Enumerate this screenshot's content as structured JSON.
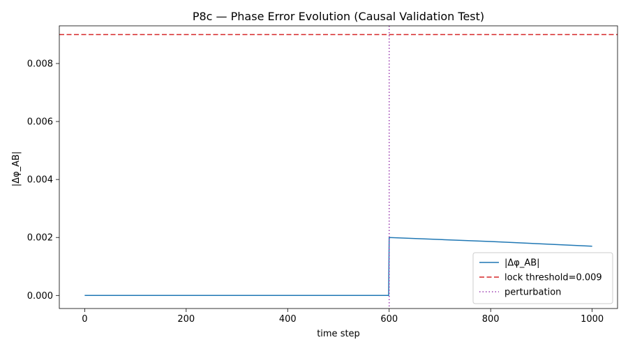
{
  "chart_data": {
    "type": "line",
    "title": "P8c — Phase Error Evolution (Causal Validation Test)",
    "xlabel": "time step",
    "ylabel": "|Δφ_AB|",
    "xlim": [
      -50,
      1050
    ],
    "ylim": [
      -0.00045,
      0.0093
    ],
    "xticks": [
      0,
      200,
      400,
      600,
      800,
      1000
    ],
    "xtick_labels": [
      "0",
      "200",
      "400",
      "600",
      "800",
      "1000"
    ],
    "yticks": [
      0.0,
      0.002,
      0.004,
      0.006,
      0.008
    ],
    "ytick_labels": [
      "0.000",
      "0.002",
      "0.004",
      "0.006",
      "0.008"
    ],
    "grid": false,
    "legend_position": "bottom-right",
    "series": [
      {
        "name": "|Δφ_AB|",
        "color": "#1f77b4",
        "style": "solid",
        "x": [
          0,
          599,
          600,
          700,
          800,
          900,
          1000
        ],
        "y": [
          0.0,
          0.0,
          0.002,
          0.00193,
          0.00186,
          0.00178,
          0.0017
        ]
      }
    ],
    "hlines": [
      {
        "name": "lock threshold=0.009",
        "y": 0.009,
        "color": "#d62728",
        "style": "dashed"
      }
    ],
    "vlines": [
      {
        "name": "perturbation",
        "x": 600,
        "color": "#9b3bb0",
        "style": "dotted"
      }
    ]
  }
}
